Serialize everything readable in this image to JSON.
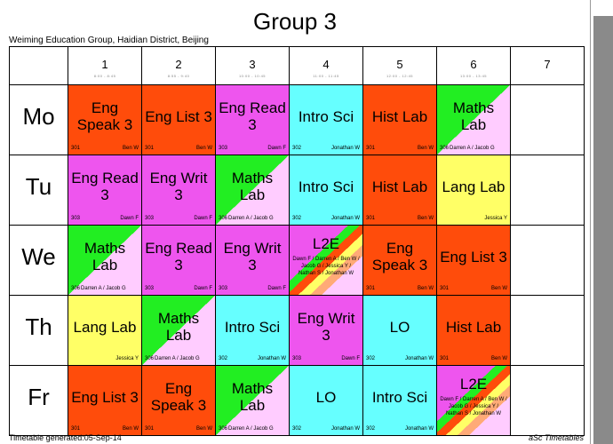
{
  "page": {
    "title": "Group 3",
    "subtitle": "Weiming Education Group, Haidian District, Beijing",
    "footer_left": "Timetable generated:05-Sep-14",
    "footer_right": "aSc Timetables"
  },
  "colors": {
    "orange": "#ff4c0b",
    "magenta": "#ee55ee",
    "cyan": "#66ffff",
    "yellow": "#ffff66",
    "green": "#22ee22",
    "pink": "#ffccff",
    "l2e_stripes": [
      "#22ee22",
      "#ff4c0b",
      "#ffff66",
      "#ffaa77"
    ]
  },
  "periods": [
    {
      "num": "1",
      "time": "8:00 - 8:45"
    },
    {
      "num": "2",
      "time": "8:55 - 9:40"
    },
    {
      "num": "3",
      "time": "10:00 - 10:45"
    },
    {
      "num": "4",
      "time": "11:00 - 11:45"
    },
    {
      "num": "5",
      "time": "12:00 - 12:45"
    },
    {
      "num": "6",
      "time": "13:00 - 13:45"
    },
    {
      "num": "7",
      "time": ""
    }
  ],
  "days": [
    {
      "label": "Mo",
      "cells": [
        {
          "subject": "Eng Speak 3",
          "room": "301",
          "teacher": "Ben W",
          "style": "orange"
        },
        {
          "subject": "Eng List 3",
          "room": "301",
          "teacher": "Ben W",
          "style": "orange"
        },
        {
          "subject": "Eng Read 3",
          "room": "303",
          "teacher": "Dawn F",
          "style": "magenta"
        },
        {
          "subject": "Intro Sci",
          "room": "302",
          "teacher": "Jonathan W",
          "style": "cyan"
        },
        {
          "subject": "Hist Lab",
          "room": "301",
          "teacher": "Ben W",
          "style": "orange"
        },
        {
          "subject": "Maths Lab",
          "room": "306",
          "teacher": "Darren A / Jacob G",
          "style": "maths"
        },
        null
      ]
    },
    {
      "label": "Tu",
      "cells": [
        {
          "subject": "Eng Read 3",
          "room": "303",
          "teacher": "Dawn F",
          "style": "magenta"
        },
        {
          "subject": "Eng Writ 3",
          "room": "303",
          "teacher": "Dawn F",
          "style": "magenta"
        },
        {
          "subject": "Maths Lab",
          "room": "306",
          "teacher": "Darren A / Jacob G",
          "style": "maths"
        },
        {
          "subject": "Intro Sci",
          "room": "302",
          "teacher": "Jonathan W",
          "style": "cyan"
        },
        {
          "subject": "Hist Lab",
          "room": "301",
          "teacher": "Ben W",
          "style": "orange"
        },
        {
          "subject": "Lang Lab",
          "room": "",
          "teacher": "Jessica Y",
          "style": "yellow"
        },
        null
      ]
    },
    {
      "label": "We",
      "cells": [
        {
          "subject": "Maths Lab",
          "room": "306",
          "teacher": "Darren A / Jacob G",
          "style": "maths"
        },
        {
          "subject": "Eng Read 3",
          "room": "303",
          "teacher": "Dawn F",
          "style": "magenta"
        },
        {
          "subject": "Eng Writ 3",
          "room": "303",
          "teacher": "Dawn F",
          "style": "magenta"
        },
        {
          "subject": "L2E",
          "room": "",
          "teacher": "Dawn F / Darren A / Ben W / Jacob G / Jessica Y / Nathan S / Jonathan W",
          "style": "l2e"
        },
        {
          "subject": "Eng Speak 3",
          "room": "301",
          "teacher": "Ben W",
          "style": "orange"
        },
        {
          "subject": "Eng List 3",
          "room": "301",
          "teacher": "Ben W",
          "style": "orange"
        },
        null
      ]
    },
    {
      "label": "Th",
      "cells": [
        {
          "subject": "Lang Lab",
          "room": "",
          "teacher": "Jessica Y",
          "style": "yellow"
        },
        {
          "subject": "Maths Lab",
          "room": "306",
          "teacher": "Darren A / Jacob G",
          "style": "maths"
        },
        {
          "subject": "Intro Sci",
          "room": "302",
          "teacher": "Jonathan W",
          "style": "cyan"
        },
        {
          "subject": "Eng Writ 3",
          "room": "303",
          "teacher": "Dawn F",
          "style": "magenta"
        },
        {
          "subject": "LO",
          "room": "302",
          "teacher": "Jonathan W",
          "style": "cyan"
        },
        {
          "subject": "Hist Lab",
          "room": "301",
          "teacher": "Ben W",
          "style": "orange"
        },
        null
      ]
    },
    {
      "label": "Fr",
      "cells": [
        {
          "subject": "Eng List 3",
          "room": "301",
          "teacher": "Ben W",
          "style": "orange"
        },
        {
          "subject": "Eng Speak 3",
          "room": "301",
          "teacher": "Ben W",
          "style": "orange"
        },
        {
          "subject": "Maths Lab",
          "room": "306",
          "teacher": "Darren A / Jacob G",
          "style": "maths"
        },
        {
          "subject": "LO",
          "room": "302",
          "teacher": "Jonathan W",
          "style": "cyan"
        },
        {
          "subject": "Intro Sci",
          "room": "302",
          "teacher": "Jonathan W",
          "style": "cyan"
        },
        {
          "subject": "L2E",
          "room": "",
          "teacher": "Dawn F / Darren A / Ben W / Jacob G / Jessica Y / Nathan S / Jonathan W",
          "style": "l2e"
        },
        null
      ]
    }
  ]
}
